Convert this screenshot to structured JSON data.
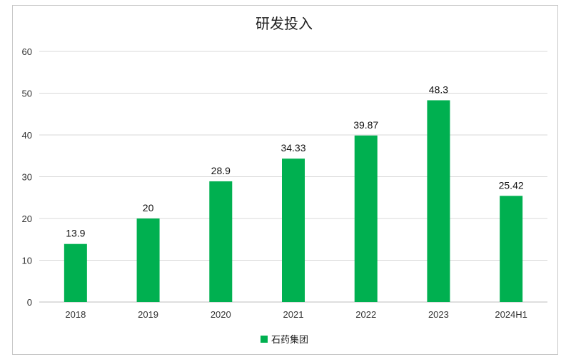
{
  "chart_data": {
    "type": "bar",
    "title": "研发投入",
    "xlabel": "",
    "ylabel": "",
    "categories": [
      "2018",
      "2019",
      "2020",
      "2021",
      "2022",
      "2023",
      "2024H1"
    ],
    "series": [
      {
        "name": "石药集团",
        "values": [
          13.9,
          20,
          28.9,
          34.33,
          39.87,
          48.3,
          25.42
        ],
        "labels": [
          "13.9",
          "20",
          "28.9",
          "34.33",
          "39.87",
          "48.3",
          "25.42"
        ],
        "color": "#00b050"
      }
    ],
    "ylim": [
      0,
      60
    ],
    "yticks": [
      "0",
      "10",
      "20",
      "30",
      "40",
      "50",
      "60"
    ],
    "grid": true,
    "legend": "bottom"
  }
}
